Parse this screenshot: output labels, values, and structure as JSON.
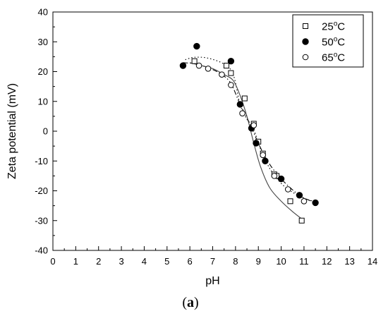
{
  "chart_data": {
    "type": "scatter",
    "xlabel": "pH",
    "ylabel": "Zeta potential (mV)",
    "xlim": [
      0,
      14
    ],
    "ylim": [
      -40,
      40
    ],
    "xticks": [
      "0",
      "1",
      "2",
      "3",
      "4",
      "5",
      "6",
      "7",
      "8",
      "9",
      "10",
      "11",
      "12",
      "13",
      "14"
    ],
    "yticks": [
      "40",
      "30",
      "20",
      "10",
      "0",
      "-10",
      "-20",
      "-30",
      "-40"
    ],
    "legend_position": "top-right",
    "panel_label": "(a)",
    "series": [
      {
        "name": "25°C",
        "label_base": "25",
        "label_sup": "o",
        "label_unit": "C",
        "marker": "open-square",
        "line": "dotted",
        "x": [
          6.2,
          7.6,
          7.8,
          8.4,
          8.8,
          9.0,
          9.2,
          9.7,
          9.8,
          10.4,
          10.9
        ],
        "y": [
          23.5,
          22.0,
          19.5,
          11.0,
          2.5,
          -3.5,
          -7.5,
          -14.5,
          -15.0,
          -23.5,
          -30.0
        ],
        "fit_x": [
          5.8,
          6.2,
          6.8,
          7.5,
          7.9,
          8.2,
          8.5,
          8.8,
          9.1,
          9.5,
          10.0,
          10.5,
          11.0,
          11.4
        ],
        "fit_y": [
          24.0,
          24.8,
          24.5,
          22.5,
          19.0,
          9.0,
          4.0,
          0.5,
          -6.0,
          -12.5,
          -17.5,
          -20.5,
          -22.5,
          -23.5
        ]
      },
      {
        "name": "50°C",
        "label_base": "50",
        "label_sup": "o",
        "label_unit": "C",
        "marker": "filled-circle",
        "line": "dash-dot",
        "x": [
          5.7,
          6.3,
          7.8,
          8.2,
          8.7,
          8.9,
          9.3,
          10.0,
          10.8,
          11.5
        ],
        "y": [
          22.0,
          28.5,
          23.5,
          9.0,
          1.0,
          -4.0,
          -10.0,
          -16.0,
          -21.5,
          -24.0
        ],
        "fit_x": [
          5.7,
          6.3,
          6.9,
          7.4,
          7.8,
          8.2,
          8.6,
          9.0,
          9.4,
          10.0,
          10.8,
          11.5
        ],
        "fit_y": [
          23.0,
          22.5,
          21.0,
          19.0,
          16.0,
          9.0,
          3.0,
          -4.0,
          -10.0,
          -16.0,
          -21.5,
          -24.0
        ]
      },
      {
        "name": "65°C",
        "label_base": "65",
        "label_sup": "o",
        "label_unit": "C",
        "marker": "open-circle",
        "line": "solid",
        "x": [
          6.4,
          6.8,
          7.4,
          7.8,
          8.3,
          8.8,
          9.2,
          9.7,
          10.3,
          11.0
        ],
        "y": [
          22.0,
          21.0,
          19.0,
          15.5,
          6.0,
          2.0,
          -8.0,
          -15.0,
          -19.5,
          -23.5
        ],
        "fit_x": [
          6.0,
          6.5,
          7.0,
          7.5,
          7.9,
          8.2,
          8.5,
          8.8,
          9.1,
          9.5,
          10.0,
          10.5,
          11.0
        ],
        "fit_y": [
          23.0,
          22.0,
          21.0,
          19.0,
          17.0,
          12.0,
          5.0,
          -4.0,
          -12.0,
          -19.0,
          -23.5,
          -27.0,
          -30.0
        ]
      }
    ]
  }
}
